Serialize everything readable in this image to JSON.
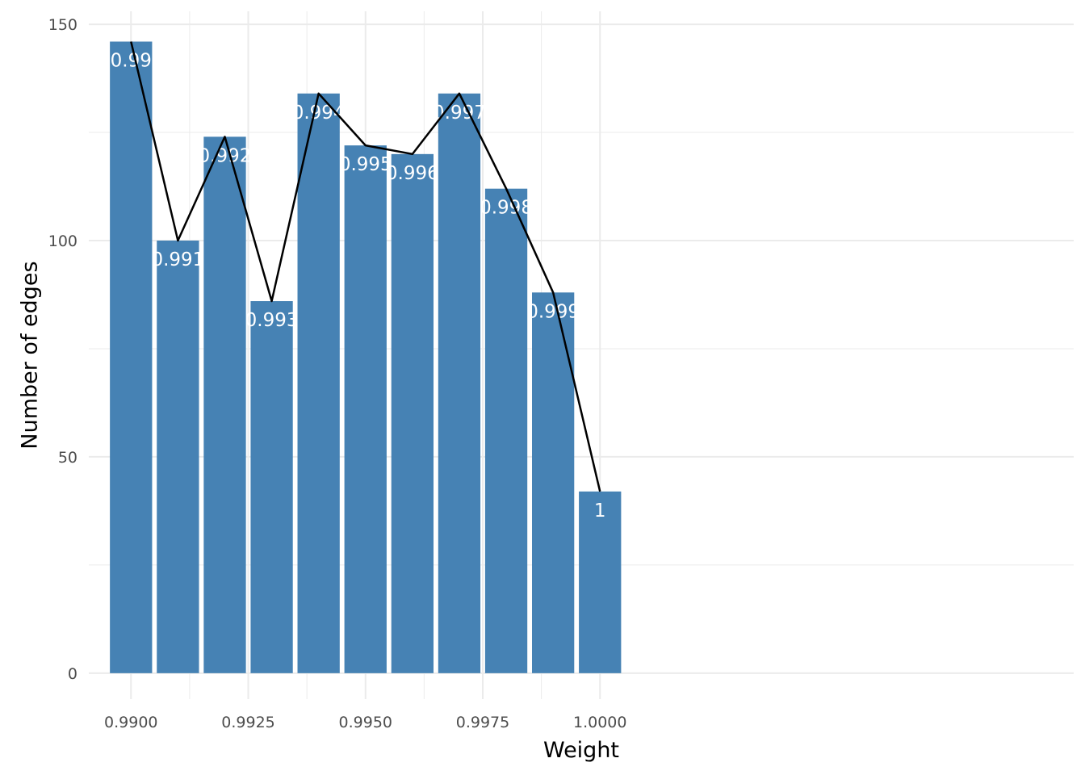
{
  "chart_data": {
    "type": "bar",
    "title": "",
    "xlabel": "Weight",
    "ylabel": "Number of edges",
    "x": [
      0.99,
      0.991,
      0.992,
      0.993,
      0.994,
      0.995,
      0.996,
      0.997,
      0.998,
      0.999,
      1.0
    ],
    "values": [
      146,
      100,
      124,
      86,
      134,
      122,
      120,
      134,
      112,
      88,
      42
    ],
    "bar_labels": [
      "0.99",
      "0.991",
      "0.992",
      "0.993",
      "0.994",
      "0.995",
      "0.996",
      "0.997",
      "0.998",
      "0.999",
      "1"
    ],
    "line_overlay": true,
    "xlim": [
      0.9891,
      1.0101
    ],
    "ylim": [
      -6,
      153
    ],
    "x_ticks": [
      0.99,
      0.9925,
      0.995,
      0.9975,
      1.0
    ],
    "x_tick_labels": [
      "0.9900",
      "0.9925",
      "0.9950",
      "0.9975",
      "1.0000"
    ],
    "y_ticks": [
      0,
      50,
      100,
      150
    ],
    "y_tick_labels": [
      "0",
      "50",
      "100",
      "150"
    ],
    "grid": true,
    "legend": "none",
    "colors": {
      "bar": "#4682b4",
      "line": "#000000",
      "grid": "#ebebeb",
      "bar_label": "#ffffff"
    }
  }
}
